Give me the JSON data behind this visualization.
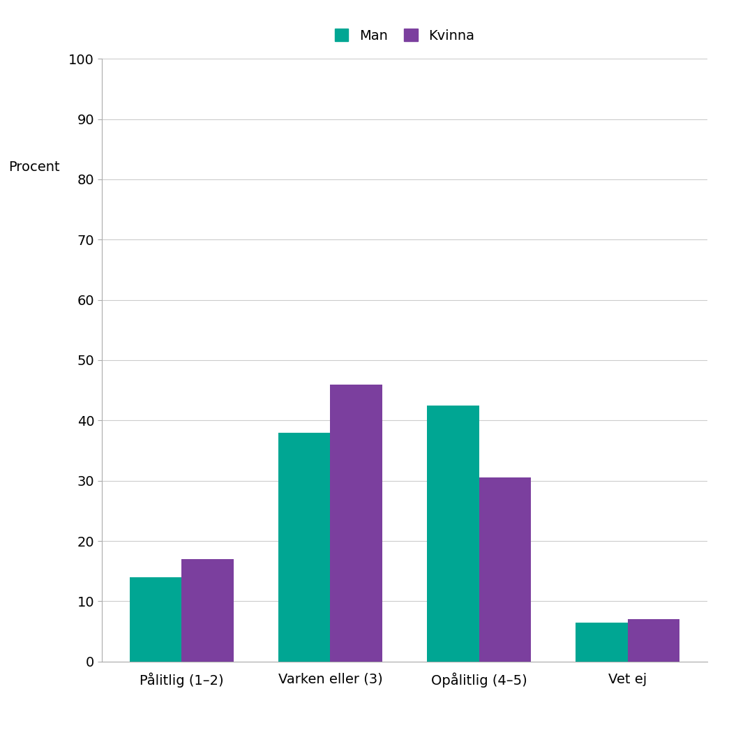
{
  "categories": [
    "Pålitlig (1–2)",
    "Varken eller (3)",
    "Opålitlig (4–5)",
    "Vet ej"
  ],
  "man_values": [
    14.0,
    38.0,
    42.5,
    6.5
  ],
  "kvinna_values": [
    17.0,
    46.0,
    30.5,
    7.0
  ],
  "man_color": "#00A693",
  "kvinna_color": "#7B3F9E",
  "legend_labels": [
    "Man",
    "Kvinna"
  ],
  "ylabel": "Procent",
  "ylim": [
    0,
    100
  ],
  "yticks": [
    0,
    10,
    20,
    30,
    40,
    50,
    60,
    70,
    80,
    90,
    100
  ],
  "background_color": "#FFFFFF",
  "grid_color": "#CCCCCC",
  "bar_width": 0.35,
  "axis_fontsize": 14,
  "tick_fontsize": 14,
  "legend_fontsize": 14
}
